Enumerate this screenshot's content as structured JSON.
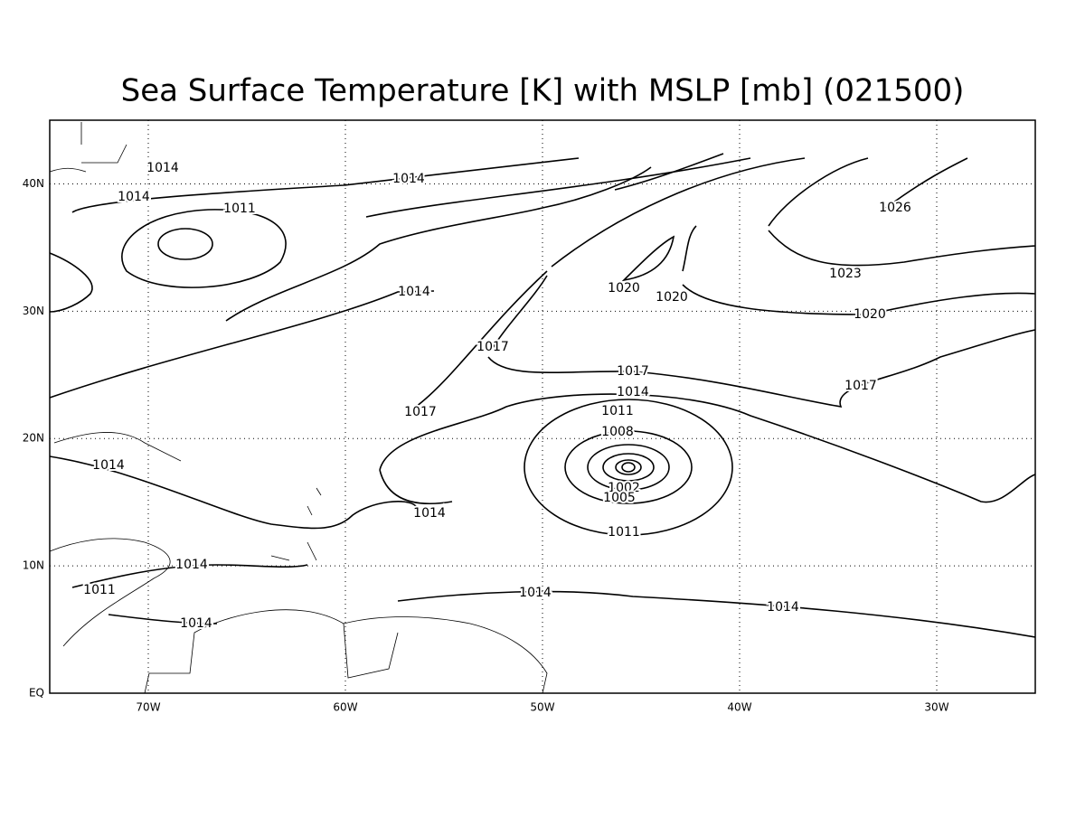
{
  "chart_data": {
    "type": "contour-map",
    "title": "Sea Surface Temperature [K] with MSLP [mb] (021500)",
    "xlim": [
      -75,
      -25
    ],
    "ylim": [
      0,
      45
    ],
    "xticks": [
      {
        "value": -70,
        "label": "70W"
      },
      {
        "value": -60,
        "label": "60W"
      },
      {
        "value": -50,
        "label": "50W"
      },
      {
        "value": -40,
        "label": "40W"
      },
      {
        "value": -30,
        "label": "30W"
      }
    ],
    "yticks": [
      {
        "value": 0,
        "label": "EQ"
      },
      {
        "value": 10,
        "label": "10N"
      },
      {
        "value": 20,
        "label": "20N"
      },
      {
        "value": 30,
        "label": "30N"
      },
      {
        "value": 40,
        "label": "40N"
      }
    ],
    "grid": true,
    "contour_labels": [
      "1014",
      "1014",
      "1014",
      "1011",
      "1026",
      "1023",
      "1020",
      "1020",
      "1020",
      "1014",
      "1017",
      "1017",
      "1017",
      "1017",
      "1014",
      "1011",
      "1008",
      "1002",
      "1005",
      "1014",
      "1014",
      "1011",
      "1014",
      "1014",
      "1011",
      "1014",
      "1014"
    ]
  }
}
